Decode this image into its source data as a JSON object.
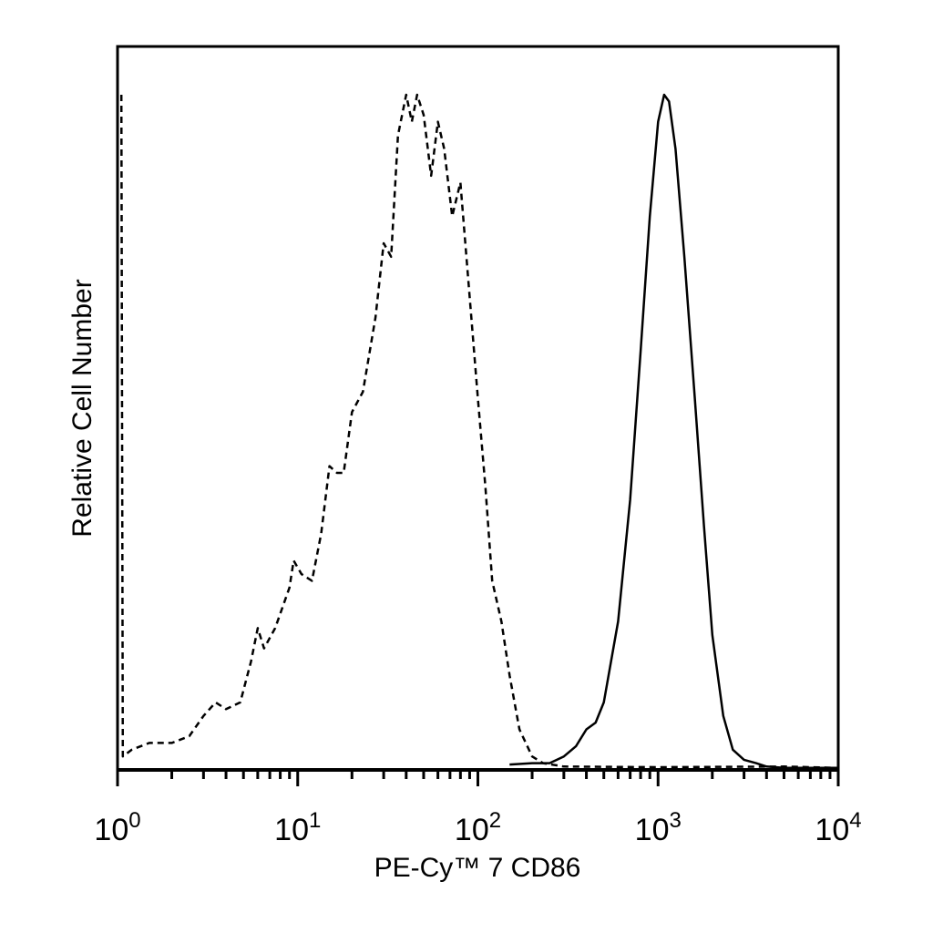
{
  "chart_data": {
    "type": "line",
    "title": "",
    "xlabel": "PE-Cy™ 7 CD86",
    "ylabel": "Relative Cell Number",
    "xscale": "log",
    "xlim": [
      1,
      10000
    ],
    "ylim": [
      0,
      100
    ],
    "grid": false,
    "legend": "none",
    "x_ticks": [
      {
        "value": 1,
        "base": "10",
        "exp": "0"
      },
      {
        "value": 10,
        "base": "10",
        "exp": "1"
      },
      {
        "value": 100,
        "base": "10",
        "exp": "2"
      },
      {
        "value": 1000,
        "base": "10",
        "exp": "3"
      },
      {
        "value": 10000,
        "base": "10",
        "exp": "4"
      }
    ],
    "series": [
      {
        "style": "dashed",
        "color": "#000000",
        "points": [
          [
            1.05,
            100
          ],
          [
            1.07,
            2
          ],
          [
            1.2,
            3
          ],
          [
            1.5,
            4
          ],
          [
            2,
            4
          ],
          [
            2.5,
            5
          ],
          [
            3,
            8
          ],
          [
            3.5,
            10
          ],
          [
            4,
            9
          ],
          [
            4.8,
            10
          ],
          [
            5.5,
            16
          ],
          [
            6,
            21
          ],
          [
            6.5,
            18
          ],
          [
            7.5,
            21
          ],
          [
            9,
            27
          ],
          [
            9.5,
            31
          ],
          [
            10.5,
            29
          ],
          [
            12,
            28
          ],
          [
            13.5,
            35
          ],
          [
            15,
            45
          ],
          [
            16.5,
            44
          ],
          [
            18,
            44
          ],
          [
            20,
            53
          ],
          [
            23,
            56
          ],
          [
            27,
            67
          ],
          [
            30,
            78
          ],
          [
            33,
            76
          ],
          [
            36,
            94
          ],
          [
            40,
            100
          ],
          [
            43,
            96
          ],
          [
            46,
            100
          ],
          [
            50,
            97
          ],
          [
            55,
            88
          ],
          [
            60,
            96
          ],
          [
            65,
            92
          ],
          [
            72,
            82
          ],
          [
            80,
            87
          ],
          [
            90,
            70
          ],
          [
            100,
            55
          ],
          [
            110,
            42
          ],
          [
            120,
            28
          ],
          [
            135,
            22
          ],
          [
            150,
            14
          ],
          [
            170,
            6
          ],
          [
            200,
            2
          ],
          [
            230,
            1
          ],
          [
            300,
            0.5
          ],
          [
            1000,
            0.4
          ],
          [
            5000,
            0.5
          ],
          [
            10000,
            0.3
          ]
        ]
      },
      {
        "style": "solid",
        "color": "#000000",
        "points": [
          [
            150,
            0.8
          ],
          [
            200,
            1
          ],
          [
            250,
            1
          ],
          [
            300,
            2
          ],
          [
            350,
            3.5
          ],
          [
            400,
            6
          ],
          [
            450,
            7
          ],
          [
            500,
            10
          ],
          [
            600,
            22
          ],
          [
            700,
            40
          ],
          [
            800,
            62
          ],
          [
            900,
            82
          ],
          [
            1000,
            96
          ],
          [
            1080,
            100
          ],
          [
            1150,
            99
          ],
          [
            1250,
            92
          ],
          [
            1400,
            76
          ],
          [
            1600,
            55
          ],
          [
            1800,
            36
          ],
          [
            2000,
            20
          ],
          [
            2300,
            8
          ],
          [
            2600,
            3
          ],
          [
            3000,
            1.5
          ],
          [
            3500,
            1
          ],
          [
            4000,
            0.5
          ],
          [
            5000,
            0.3
          ],
          [
            10000,
            0.3
          ]
        ]
      }
    ]
  }
}
